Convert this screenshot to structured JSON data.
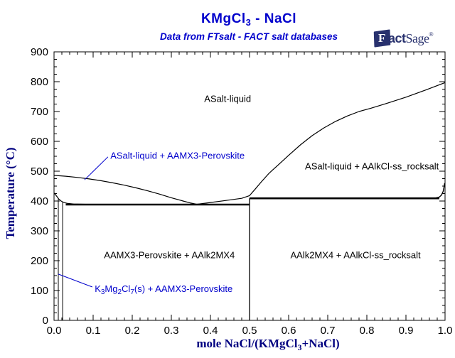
{
  "header": {
    "title_main": "KMgCl",
    "title_sub": "3",
    "title_tail": " - NaCl",
    "subtitle": "Data from FTsalt - FACT salt databases"
  },
  "logo": {
    "f": "F",
    "act": "act",
    "sage": "Sage",
    "reg": "®"
  },
  "axis": {
    "xlabel_main": "mole NaCl/(KMgCl",
    "xlabel_sub": "3",
    "xlabel_tail": "+NaCl)",
    "ylabel": "Temperature (°C)"
  },
  "colors": {
    "title_color": "#0000CC",
    "subtitle_color": "#0000CC",
    "axis_label_color": "#000080",
    "annotation_color": "#0000CC",
    "curve_color": "#000000",
    "logo_color": "#28316E",
    "background": "#FFFFFF"
  },
  "chart_data": {
    "type": "line",
    "title": "KMgCl3 - NaCl",
    "subtitle": "Data from FTsalt - FACT salt databases",
    "xlabel": "mole NaCl/(KMgCl3+NaCl)",
    "ylabel": "Temperature (°C)",
    "xlim": [
      0.0,
      1.0
    ],
    "ylim": [
      0,
      900
    ],
    "grid": false,
    "x_major_ticks": [
      0.0,
      0.1,
      0.2,
      0.3,
      0.4,
      0.5,
      0.6,
      0.7,
      0.8,
      0.9,
      1.0
    ],
    "x_tick_labels": [
      "0.0",
      "0.1",
      "0.2",
      "0.3",
      "0.4",
      "0.5",
      "0.6",
      "0.7",
      "0.8",
      "0.9",
      "1.0"
    ],
    "x_minor_step": 0.02,
    "y_major_ticks": [
      0,
      100,
      200,
      300,
      400,
      500,
      600,
      700,
      800,
      900
    ],
    "y_tick_labels": [
      "0",
      "100",
      "200",
      "300",
      "400",
      "500",
      "600",
      "700",
      "800",
      "900"
    ],
    "y_minor_step": 25,
    "series": [
      {
        "name": "liquidus-left",
        "width": 1.2,
        "points": [
          [
            0,
            486
          ],
          [
            0.03,
            483
          ],
          [
            0.06,
            479
          ],
          [
            0.09,
            474
          ],
          [
            0.12,
            468
          ],
          [
            0.15,
            461
          ],
          [
            0.18,
            453
          ],
          [
            0.21,
            444
          ],
          [
            0.24,
            434
          ],
          [
            0.27,
            423
          ],
          [
            0.3,
            411
          ],
          [
            0.33,
            400
          ],
          [
            0.35,
            393
          ],
          [
            0.365,
            389
          ]
        ]
      },
      {
        "name": "liquidus-right",
        "width": 1.2,
        "points": [
          [
            0.365,
            389
          ],
          [
            0.4,
            395
          ],
          [
            0.44,
            402
          ],
          [
            0.48,
            409
          ],
          [
            0.5,
            418
          ],
          [
            0.515,
            441
          ],
          [
            0.53,
            464
          ],
          [
            0.55,
            493
          ],
          [
            0.575,
            523
          ],
          [
            0.6,
            553
          ],
          [
            0.63,
            588
          ],
          [
            0.66,
            619
          ],
          [
            0.69,
            645
          ],
          [
            0.72,
            667
          ],
          [
            0.75,
            685
          ],
          [
            0.78,
            700
          ],
          [
            0.81,
            711
          ],
          [
            0.85,
            727
          ],
          [
            0.9,
            748
          ],
          [
            0.95,
            772
          ],
          [
            1.0,
            797
          ]
        ]
      },
      {
        "name": "solidus-left",
        "width": 1.2,
        "points": [
          [
            0,
            427
          ],
          [
            0.004,
            421
          ],
          [
            0.008,
            414
          ],
          [
            0.012,
            407
          ],
          [
            0.018,
            400
          ],
          [
            0.025,
            395
          ],
          [
            0.035,
            392
          ],
          [
            0.05,
            390
          ],
          [
            0.08,
            389
          ],
          [
            0.11,
            388
          ]
        ]
      },
      {
        "name": "eutectic-line",
        "width": 2.6,
        "points": [
          [
            0.03,
            388
          ],
          [
            0.5,
            388
          ]
        ]
      },
      {
        "name": "peritectic-line",
        "width": 2.6,
        "points": [
          [
            0.5,
            409
          ],
          [
            0.985,
            409
          ]
        ]
      },
      {
        "name": "rocksalt-solvus",
        "width": 1.4,
        "points": [
          [
            0.975,
            410
          ],
          [
            0.985,
            413
          ],
          [
            0.991,
            420
          ],
          [
            0.995,
            432
          ],
          [
            0.9975,
            447
          ],
          [
            0.999,
            460
          ]
        ]
      },
      {
        "name": "compound-line-x0.5",
        "width": 1.3,
        "points": [
          [
            0.5,
            0
          ],
          [
            0.5,
            409
          ]
        ]
      },
      {
        "name": "k3mg2cl7-boundary-left",
        "width": 1.0,
        "points": [
          [
            0.011,
            0
          ],
          [
            0.011,
            407
          ]
        ]
      },
      {
        "name": "k3mg2cl7-boundary-right",
        "width": 1.0,
        "points": [
          [
            0.022,
            0
          ],
          [
            0.022,
            396
          ]
        ]
      }
    ],
    "region_labels": [
      {
        "text": "ASalt-liquid",
        "x": 0.444,
        "T": 743
      },
      {
        "text": "ASalt-liquid + AAlkCl-ss_rocksalt",
        "x": 0.813,
        "T": 517
      },
      {
        "text": "AAMX3-Perovskite + AAlk2MX4",
        "x": 0.295,
        "T": 219
      },
      {
        "text": "AAlk2MX4 + AAlkCl-ss_rocksalt",
        "x": 0.771,
        "T": 219
      }
    ],
    "annotations": [
      {
        "name": "asalt-aamx3-annotation",
        "x": 0.144,
        "T": 552,
        "parts": [
          {
            "t": "ASalt-liquid + AAMX3-Perovskite"
          }
        ],
        "leader": [
          [
            0.138,
            548
          ],
          [
            0.078,
            471
          ]
        ]
      },
      {
        "name": "k3mg2cl7-annotation",
        "x": 0.104,
        "T": 102,
        "parts": [
          {
            "t": "K"
          },
          {
            "t": "3",
            "sub": true
          },
          {
            "t": "Mg"
          },
          {
            "t": "2",
            "sub": true
          },
          {
            "t": "Cl"
          },
          {
            "t": "7",
            "sub": true
          },
          {
            "t": "(s) + AAMX3-Perovskite"
          }
        ],
        "leader": [
          [
            0.098,
            112
          ],
          [
            0.011,
            155
          ]
        ]
      }
    ]
  }
}
